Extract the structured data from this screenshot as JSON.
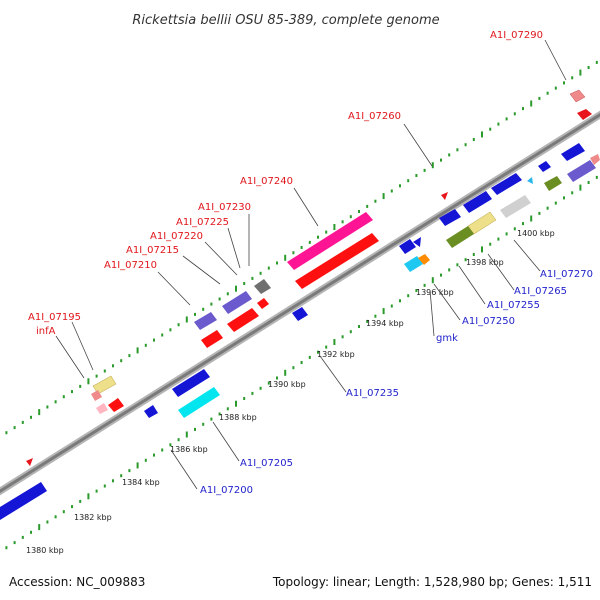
{
  "title": "Rickettsia bellii OSU 85-389, complete genome",
  "footer": {
    "accession": "Accession: NC_009883",
    "summary": "Topology: linear; Length: 1,528,980 bp; Genes: 1,511"
  },
  "colors": {
    "backbone": "#8c8c8c",
    "track_dots": "#2a9a2a",
    "upper_label": "#e0161c",
    "lower_label": "#2323cc",
    "leader": "#444444"
  },
  "ticks": {
    "major": [
      {
        "kbp": 1380,
        "label": "1380 kbp"
      },
      {
        "kbp": 1382,
        "label": "1382 kbp"
      },
      {
        "kbp": 1384,
        "label": "1384 kbp"
      },
      {
        "kbp": 1386,
        "label": "1386 kbp"
      },
      {
        "kbp": 1388,
        "label": "1388 kbp"
      },
      {
        "kbp": 1390,
        "label": "1390 kbp"
      },
      {
        "kbp": 1392,
        "label": "1392 kbp"
      },
      {
        "kbp": 1394,
        "label": "1394 kbp"
      },
      {
        "kbp": 1396,
        "label": "1396 kbp"
      },
      {
        "kbp": 1398,
        "label": "1398 kbp"
      },
      {
        "kbp": 1400,
        "label": "1400 kbp"
      }
    ]
  },
  "labels_upper": [
    {
      "text": "A1I_07290"
    },
    {
      "text": "A1I_07260"
    },
    {
      "text": "A1I_07240"
    },
    {
      "text": "A1I_07230"
    },
    {
      "text": "A1I_07225"
    },
    {
      "text": "A1I_07220"
    },
    {
      "text": "A1I_07215"
    },
    {
      "text": "A1I_07210"
    },
    {
      "text": "A1I_07195"
    },
    {
      "text": "infA"
    }
  ],
  "labels_lower": [
    {
      "text": "A1I_07270"
    },
    {
      "text": "A1I_07265"
    },
    {
      "text": "A1I_07255"
    },
    {
      "text": "A1I_07250"
    },
    {
      "text": "gmk"
    },
    {
      "text": "A1I_07235"
    },
    {
      "text": "A1I_07205"
    },
    {
      "text": "A1I_07200"
    }
  ]
}
